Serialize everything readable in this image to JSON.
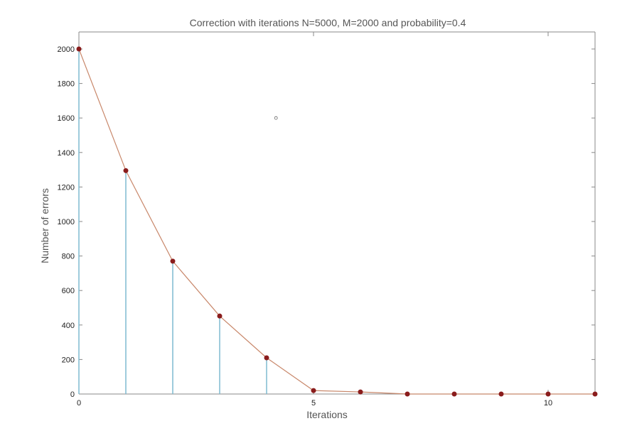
{
  "chart_data": {
    "type": "line",
    "title": "Correction with iterations N=5000, M=2000 and probability=0.4",
    "xlabel": "Iterations",
    "ylabel": "Number of errors",
    "xlim": [
      0,
      11
    ],
    "ylim": [
      0,
      2000
    ],
    "xticks": [
      0,
      5,
      10
    ],
    "xtick_labels": [
      "0",
      "5",
      "10"
    ],
    "yticks": [
      0,
      200,
      400,
      600,
      800,
      1000,
      1200,
      1400,
      1600,
      1800,
      2000
    ],
    "grid": false,
    "series": [
      {
        "x": [
          0,
          1,
          2,
          3,
          4,
          5,
          6,
          7,
          8,
          9,
          10,
          11
        ],
        "values": [
          2000,
          1295,
          770,
          452,
          210,
          20,
          12,
          0,
          0,
          0,
          0,
          0
        ]
      }
    ],
    "stems": [
      0,
      1,
      2,
      3,
      4
    ],
    "annotations": [
      {
        "type": "open-circle-marker",
        "x": 4.2,
        "y": 1600
      }
    ],
    "colors": {
      "line": "#c8876a",
      "marker": "#8a1c1c",
      "stem": "#7fbad0",
      "axis": "#888888"
    }
  }
}
